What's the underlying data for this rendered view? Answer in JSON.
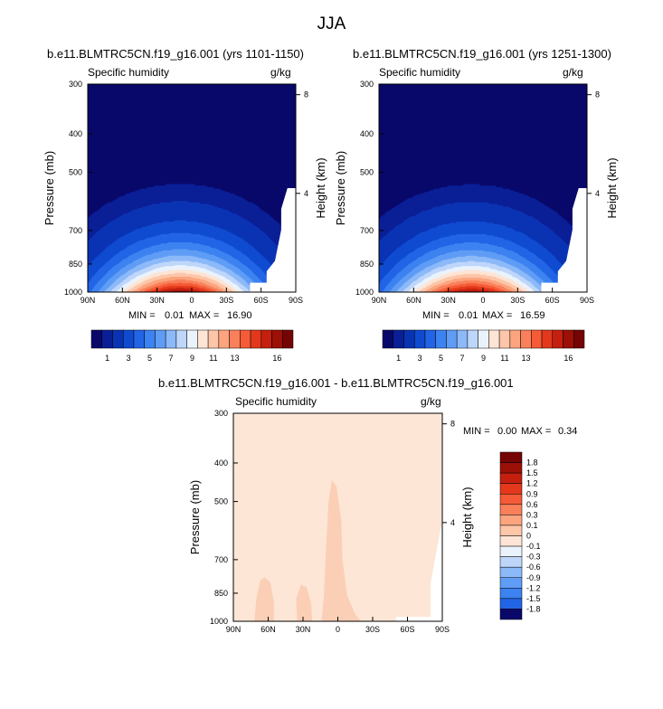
{
  "title": "JJA",
  "colors": {
    "positive_scale": [
      "#08086b",
      "#0a1e96",
      "#0a33b4",
      "#0f4bd0",
      "#2264e6",
      "#3c82f0",
      "#5f9cf5",
      "#8cb9f8",
      "#bed6fa",
      "#eaf3fc",
      "#fde4d4",
      "#fdc6a8",
      "#fca47e",
      "#f9805a",
      "#f45b36",
      "#e3381b",
      "#c51f10",
      "#9c1008",
      "#750404"
    ],
    "diff_base": "#fde6d6",
    "diff_high": "#fbcfb6",
    "background_missing": "#ffffff"
  },
  "chart_data": [
    {
      "type": "heatmap",
      "title": "b.e11.BLMTRC5CN.f19_g16.001 (yrs 1101-1150)",
      "left_label": "Specific humidity",
      "right_label": "g/kg",
      "xlabel": "",
      "ylabel": "Pressure (mb)",
      "ylabel_right": "Height (km)",
      "x_ticks": [
        "90N",
        "60N",
        "30N",
        "0",
        "30S",
        "60S",
        "90S"
      ],
      "x_range": [
        90,
        -90
      ],
      "y_ticks": [
        "300",
        "400",
        "500",
        "700",
        "850",
        "1000"
      ],
      "y_range_mb": [
        1000,
        300
      ],
      "y_right_ticks": [
        "8",
        "4"
      ],
      "min_label": "MIN =",
      "min": "0.01",
      "max_label": "MAX =",
      "max": "16.90",
      "peak_lat": 10,
      "peak_value": 16.9,
      "contour_levels": [
        0.5,
        1,
        2,
        3,
        4,
        5,
        6,
        7,
        8,
        9,
        10,
        11,
        12,
        13,
        14,
        15,
        16
      ],
      "colorbar_ticks": [
        "1",
        "3",
        "5",
        "7",
        "9",
        "11",
        "13",
        "16"
      ]
    },
    {
      "type": "heatmap",
      "title": "b.e11.BLMTRC5CN.f19_g16.001 (yrs 1251-1300)",
      "left_label": "Specific humidity",
      "right_label": "g/kg",
      "xlabel": "",
      "ylabel": "Pressure (mb)",
      "ylabel_right": "Height (km)",
      "x_ticks": [
        "90N",
        "60N",
        "30N",
        "0",
        "30S",
        "60S",
        "90S"
      ],
      "x_range": [
        90,
        -90
      ],
      "y_ticks": [
        "300",
        "400",
        "500",
        "700",
        "850",
        "1000"
      ],
      "y_range_mb": [
        1000,
        300
      ],
      "y_right_ticks": [
        "8",
        "4"
      ],
      "min_label": "MIN =",
      "min": "0.01",
      "max_label": "MAX =",
      "max": "16.59",
      "peak_lat": 10,
      "peak_value": 16.59,
      "contour_levels": [
        0.5,
        1,
        2,
        3,
        4,
        5,
        6,
        7,
        8,
        9,
        10,
        11,
        12,
        13,
        14,
        15,
        16
      ],
      "colorbar_ticks": [
        "1",
        "3",
        "5",
        "7",
        "9",
        "11",
        "13",
        "16"
      ]
    },
    {
      "type": "heatmap",
      "title": "b.e11.BLMTRC5CN.f19_g16.001 - b.e11.BLMTRC5CN.f19_g16.001",
      "left_label": "Specific humidity",
      "right_label": "g/kg",
      "xlabel": "",
      "ylabel": "Pressure (mb)",
      "ylabel_right": "Height (km)",
      "x_ticks": [
        "90N",
        "60N",
        "30N",
        "0",
        "30S",
        "60S",
        "90S"
      ],
      "x_range": [
        90,
        -90
      ],
      "y_ticks": [
        "300",
        "400",
        "500",
        "700",
        "850",
        "1000"
      ],
      "y_range_mb": [
        1000,
        300
      ],
      "y_right_ticks": [
        "8",
        "4"
      ],
      "min_label": "MIN =",
      "min": "0.00",
      "max_label": "MAX =",
      "max": "0.34",
      "colorbar_levels": [
        "1.8",
        "1.5",
        "1.2",
        "0.9",
        "0.6",
        "0.3",
        "0.1",
        "0",
        "-0.1",
        "-0.3",
        "-0.6",
        "-0.9",
        "-1.2",
        "-1.5",
        "-1.8"
      ]
    }
  ]
}
